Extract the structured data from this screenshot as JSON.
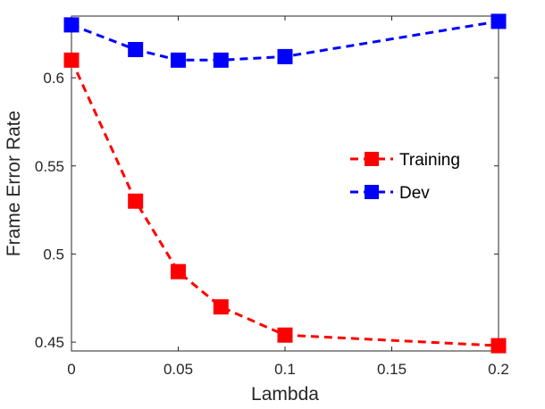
{
  "chart_data": {
    "type": "line",
    "title": "",
    "xlabel": "Lambda",
    "ylabel": "Frame Error Rate",
    "xlim": [
      0,
      0.2
    ],
    "ylim": [
      0.445,
      0.635
    ],
    "xticks": [
      0,
      0.05,
      0.1,
      0.15,
      0.2
    ],
    "xtick_labels": [
      "0",
      "0.05",
      "0.1",
      "0.15",
      "0.2"
    ],
    "yticks": [
      0.45,
      0.5,
      0.55,
      0.6
    ],
    "ytick_labels": [
      "0.45",
      "0.5",
      "0.55",
      "0.6"
    ],
    "grid": false,
    "legend_position": "right",
    "series": [
      {
        "name": "Training",
        "color": "#ff0000",
        "line_style": "dashed",
        "marker": "square",
        "x": [
          0,
          0.03,
          0.05,
          0.07,
          0.1,
          0.2
        ],
        "y": [
          0.61,
          0.53,
          0.49,
          0.47,
          0.454,
          0.448
        ]
      },
      {
        "name": "Dev",
        "color": "#0000ff",
        "line_style": "dashed",
        "marker": "square",
        "x": [
          0,
          0.03,
          0.05,
          0.07,
          0.1,
          0.2
        ],
        "y": [
          0.63,
          0.616,
          0.61,
          0.61,
          0.612,
          0.632
        ]
      }
    ]
  }
}
